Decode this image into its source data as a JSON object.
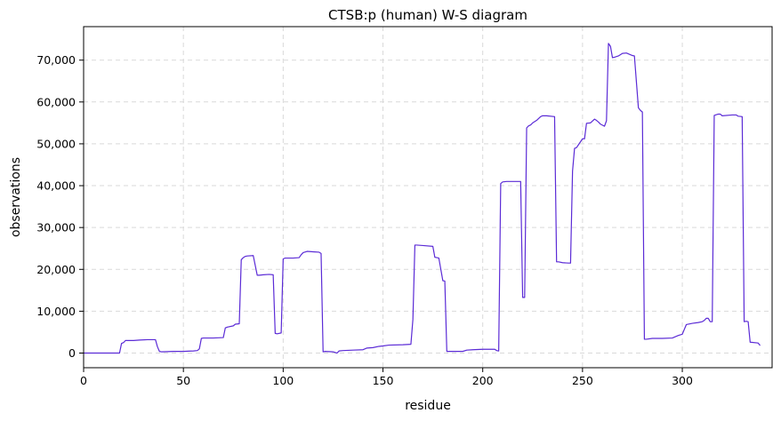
{
  "chart_data": {
    "type": "line",
    "title": "CTSB:p (human) W-S diagram",
    "xlabel": "residue",
    "ylabel": "observations",
    "xlim": [
      0,
      345
    ],
    "ylim": [
      -3500,
      78000
    ],
    "xticks": [
      0,
      50,
      100,
      150,
      200,
      250,
      300
    ],
    "xtick_labels": [
      "0",
      "50",
      "100",
      "150",
      "200",
      "250",
      "300"
    ],
    "yticks": [
      0,
      10000,
      20000,
      30000,
      40000,
      50000,
      60000,
      70000
    ],
    "ytick_labels": [
      "0",
      "10,000",
      "20,000",
      "30,000",
      "40,000",
      "50,000",
      "60,000",
      "70,000"
    ],
    "grid": true,
    "line_color": "#5b2bd6",
    "series": [
      {
        "x": [
          0,
          18,
          19,
          20,
          21,
          22,
          25,
          28,
          32,
          36,
          37,
          38,
          39,
          45,
          50,
          55,
          57,
          58,
          59,
          60,
          65,
          70,
          71,
          72,
          75,
          76,
          78,
          79,
          80,
          81,
          82,
          85,
          87,
          88,
          90,
          93,
          95,
          96,
          97,
          99,
          100,
          101,
          105,
          108,
          109,
          110,
          112,
          115,
          118,
          119,
          120,
          121,
          125,
          127,
          128,
          130,
          135,
          140,
          142,
          145,
          148,
          150,
          153,
          160,
          164,
          165,
          166,
          167,
          170,
          175,
          176,
          177,
          178,
          180,
          181,
          182,
          183,
          185,
          190,
          192,
          195,
          200,
          206,
          207,
          208,
          209,
          210,
          212,
          215,
          219,
          220,
          221,
          222,
          223,
          224,
          225,
          227,
          229,
          230,
          232,
          236,
          237,
          238,
          240,
          243,
          244,
          245,
          246,
          247,
          248,
          250,
          251,
          252,
          254,
          256,
          257,
          258,
          259,
          261,
          262,
          263,
          264,
          265,
          266,
          268,
          270,
          272,
          275,
          276,
          278,
          279,
          280,
          281,
          282,
          285,
          288,
          290,
          295,
          298,
          300,
          302,
          305,
          308,
          310,
          311,
          312,
          313,
          314,
          315,
          316,
          318,
          319,
          320,
          325,
          327,
          328,
          330,
          331,
          332,
          333,
          334,
          338,
          339
        ],
        "y": [
          0,
          0,
          2300,
          2500,
          3000,
          3000,
          3000,
          3100,
          3200,
          3200,
          1500,
          400,
          300,
          400,
          400,
          500,
          600,
          1000,
          3500,
          3600,
          3600,
          3700,
          6000,
          6200,
          6500,
          6900,
          7000,
          22300,
          22800,
          23100,
          23200,
          23300,
          18600,
          18600,
          18700,
          18800,
          18700,
          4700,
          4600,
          4800,
          22500,
          22700,
          22700,
          22800,
          23500,
          24000,
          24300,
          24200,
          24100,
          23800,
          300,
          400,
          300,
          0,
          500,
          600,
          700,
          800,
          1200,
          1300,
          1600,
          1700,
          1900,
          2000,
          2100,
          8000,
          25800,
          25800,
          25700,
          25500,
          22900,
          22800,
          22700,
          17300,
          17200,
          400,
          400,
          400,
          400,
          700,
          800,
          900,
          900,
          600,
          500,
          40500,
          40900,
          41000,
          41000,
          41000,
          13300,
          13300,
          53800,
          54300,
          54500,
          55000,
          55600,
          56500,
          56700,
          56700,
          56500,
          21800,
          21800,
          21600,
          21500,
          21500,
          43500,
          48900,
          49100,
          49800,
          51200,
          51200,
          54900,
          55000,
          55900,
          55600,
          55200,
          54700,
          54200,
          55500,
          74000,
          73300,
          70600,
          70700,
          71000,
          71600,
          71700,
          71100,
          71000,
          58600,
          58000,
          57600,
          3300,
          3300,
          3500,
          3500,
          3500,
          3600,
          4200,
          4500,
          6800,
          7100,
          7300,
          7500,
          7800,
          8300,
          8300,
          7500,
          7500,
          56800,
          57100,
          57100,
          56700,
          56900,
          56900,
          56600,
          56500,
          7500,
          7600,
          7500,
          2600,
          2400,
          1800
        ]
      }
    ]
  }
}
